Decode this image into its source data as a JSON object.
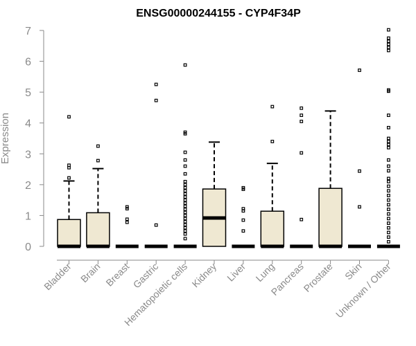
{
  "chart_data": {
    "type": "box",
    "title": "ENSG00000244155 - CYP4F34P",
    "xlabel": "",
    "ylabel": "Expression",
    "ylim": [
      0,
      7
    ],
    "yticks": [
      "0",
      "1",
      "2",
      "3",
      "4",
      "5",
      "6",
      "7"
    ],
    "grid": false,
    "box_fill": "#efe8d2",
    "categories": [
      "Bladder",
      "Brain",
      "Breast",
      "Gastric",
      "Hematopoietic cells",
      "Kidney",
      "Liver",
      "Lung",
      "Pancreas",
      "Prostate",
      "Skin",
      "Unknown / Other"
    ],
    "boxes": [
      {
        "q1": 0,
        "median": 0,
        "q3": 0.87,
        "whisker_low": 0,
        "whisker_high": 2.12,
        "outliers": [
          2.22,
          2.55,
          2.63,
          4.2
        ]
      },
      {
        "q1": 0,
        "median": 0,
        "q3": 1.09,
        "whisker_low": 0,
        "whisker_high": 2.52,
        "outliers": [
          2.78,
          3.25
        ]
      },
      {
        "q1": 0,
        "median": 0,
        "q3": 0,
        "whisker_low": 0,
        "whisker_high": 0,
        "outliers": [
          0.78,
          0.88,
          1.22,
          1.28
        ]
      },
      {
        "q1": 0,
        "median": 0,
        "q3": 0,
        "whisker_low": 0,
        "whisker_high": 0,
        "outliers": [
          0.69,
          4.73,
          5.25
        ]
      },
      {
        "q1": 0,
        "median": 0,
        "q3": 0,
        "whisker_low": 0,
        "whisker_high": 0,
        "outliers": [
          0.25,
          0.4,
          0.5,
          0.6,
          0.7,
          0.8,
          0.9,
          1.0,
          1.1,
          1.2,
          1.3,
          1.4,
          1.5,
          1.6,
          1.7,
          1.8,
          1.9,
          2.0,
          2.1,
          2.35,
          2.6,
          2.8,
          3.05,
          3.65,
          3.7,
          5.88
        ]
      },
      {
        "q1": 0,
        "median": 0.92,
        "q3": 1.86,
        "whisker_low": 0,
        "whisker_high": 3.38,
        "outliers": []
      },
      {
        "q1": 0,
        "median": 0,
        "q3": 0,
        "whisker_low": 0,
        "whisker_high": 0,
        "outliers": [
          0.5,
          0.85,
          1.15,
          1.22,
          1.85,
          1.9
        ]
      },
      {
        "q1": 0,
        "median": 0,
        "q3": 1.14,
        "whisker_low": 0,
        "whisker_high": 2.69,
        "outliers": [
          3.4,
          4.53
        ]
      },
      {
        "q1": 0,
        "median": 0,
        "q3": 0,
        "whisker_low": 0,
        "whisker_high": 0,
        "outliers": [
          0.87,
          3.03,
          4.05,
          4.25,
          4.48
        ]
      },
      {
        "q1": 0,
        "median": 0,
        "q3": 1.88,
        "whisker_low": 0,
        "whisker_high": 4.39,
        "outliers": []
      },
      {
        "q1": 0,
        "median": 0,
        "q3": 0,
        "whisker_low": 0,
        "whisker_high": 0,
        "outliers": [
          1.28,
          2.44,
          5.71
        ]
      },
      {
        "q1": 0,
        "median": 0,
        "q3": 0,
        "whisker_low": 0,
        "whisker_high": 0,
        "outliers": [
          0.15,
          0.3,
          0.45,
          0.6,
          0.75,
          0.9,
          1.05,
          1.2,
          1.35,
          1.5,
          1.65,
          1.8,
          1.95,
          2.1,
          2.2,
          2.45,
          2.6,
          2.8,
          3.2,
          3.3,
          3.4,
          3.5,
          3.85,
          4.25,
          5.03,
          5.07,
          6.35,
          6.45,
          6.55,
          6.65,
          6.75,
          7.02
        ]
      }
    ]
  }
}
